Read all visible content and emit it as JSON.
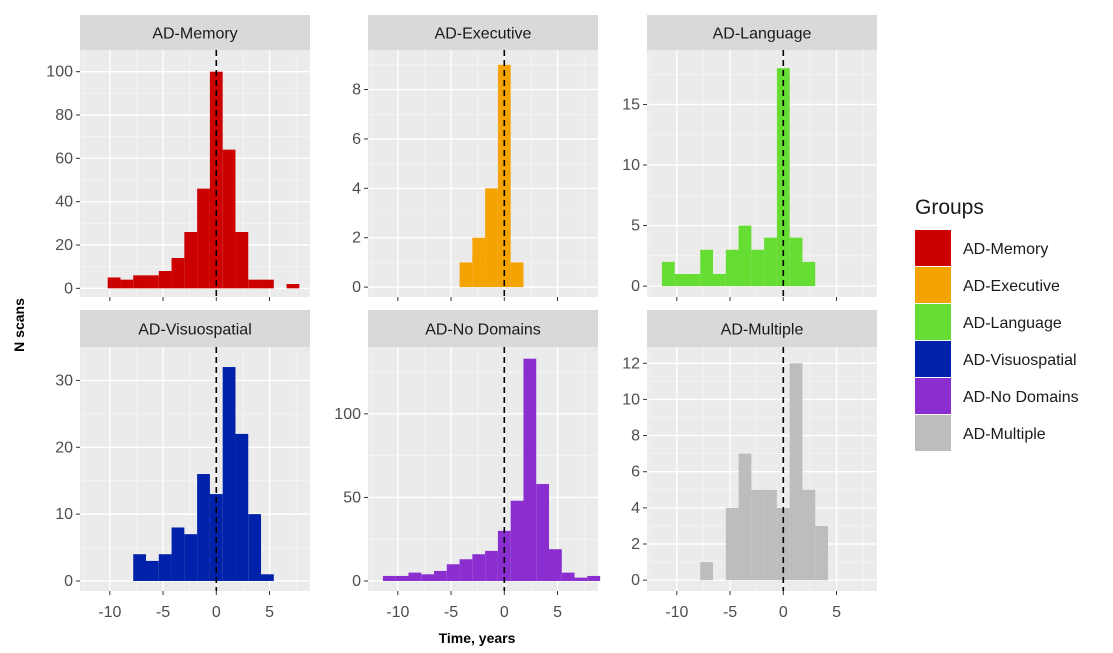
{
  "chart_data": {
    "type": "bar",
    "xlabel": "Time, years",
    "ylabel": "N scans",
    "x_ticks": [
      -10,
      -5,
      0,
      5
    ],
    "xlim": [
      -12.8,
      8.8
    ],
    "bin_width": 1.2,
    "vline_x": 0,
    "legend": {
      "title": "Groups",
      "position": "right"
    },
    "panels": [
      {
        "name": "AD-Memory",
        "color": "#cc0000",
        "ylim": [
          -4,
          110
        ],
        "y_ticks": [
          0,
          20,
          40,
          60,
          80,
          100
        ],
        "bins": [
          {
            "x": -9.6,
            "y": 5
          },
          {
            "x": -8.4,
            "y": 4
          },
          {
            "x": -7.2,
            "y": 6
          },
          {
            "x": -6.0,
            "y": 6
          },
          {
            "x": -4.8,
            "y": 8
          },
          {
            "x": -3.6,
            "y": 14
          },
          {
            "x": -2.4,
            "y": 26
          },
          {
            "x": -1.2,
            "y": 46
          },
          {
            "x": 0.0,
            "y": 100
          },
          {
            "x": 1.2,
            "y": 64
          },
          {
            "x": 2.4,
            "y": 26
          },
          {
            "x": 3.6,
            "y": 4
          },
          {
            "x": 4.8,
            "y": 4
          },
          {
            "x": 6.0,
            "y": 0
          },
          {
            "x": 7.2,
            "y": 2
          }
        ]
      },
      {
        "name": "AD-Executive",
        "color": "#f5a300",
        "ylim": [
          -0.4,
          9.6
        ],
        "y_ticks": [
          0,
          2,
          4,
          6,
          8
        ],
        "bins": [
          {
            "x": -3.6,
            "y": 1
          },
          {
            "x": -2.4,
            "y": 2
          },
          {
            "x": -1.2,
            "y": 4
          },
          {
            "x": 0.0,
            "y": 9
          },
          {
            "x": 1.2,
            "y": 1
          }
        ]
      },
      {
        "name": "AD-Language",
        "color": "#66dd33",
        "ylim": [
          -0.9,
          19.5
        ],
        "y_ticks": [
          0,
          5,
          10,
          15
        ],
        "bins": [
          {
            "x": -10.8,
            "y": 2
          },
          {
            "x": -9.6,
            "y": 1
          },
          {
            "x": -8.4,
            "y": 1
          },
          {
            "x": -7.2,
            "y": 3
          },
          {
            "x": -6.0,
            "y": 1
          },
          {
            "x": -4.8,
            "y": 3
          },
          {
            "x": -3.6,
            "y": 5
          },
          {
            "x": -2.4,
            "y": 3
          },
          {
            "x": -1.2,
            "y": 4
          },
          {
            "x": 0.0,
            "y": 18
          },
          {
            "x": 1.2,
            "y": 4
          },
          {
            "x": 2.4,
            "y": 2
          }
        ]
      },
      {
        "name": "AD-Visuospatial",
        "color": "#0022aa",
        "ylim": [
          -1.5,
          35
        ],
        "y_ticks": [
          0,
          10,
          20,
          30
        ],
        "bins": [
          {
            "x": -7.2,
            "y": 4
          },
          {
            "x": -6.0,
            "y": 3
          },
          {
            "x": -4.8,
            "y": 4
          },
          {
            "x": -3.6,
            "y": 8
          },
          {
            "x": -2.4,
            "y": 7
          },
          {
            "x": -1.2,
            "y": 16
          },
          {
            "x": 0.0,
            "y": 13
          },
          {
            "x": 1.2,
            "y": 32
          },
          {
            "x": 2.4,
            "y": 22
          },
          {
            "x": 3.6,
            "y": 10
          },
          {
            "x": 4.8,
            "y": 1
          }
        ]
      },
      {
        "name": "AD-No Domains",
        "color": "#8a2ecf",
        "ylim": [
          -6,
          140
        ],
        "y_ticks": [
          0,
          50,
          100
        ],
        "bins": [
          {
            "x": -10.8,
            "y": 3
          },
          {
            "x": -9.6,
            "y": 3
          },
          {
            "x": -8.4,
            "y": 5
          },
          {
            "x": -7.2,
            "y": 4
          },
          {
            "x": -6.0,
            "y": 6
          },
          {
            "x": -4.8,
            "y": 10
          },
          {
            "x": -3.6,
            "y": 13
          },
          {
            "x": -2.4,
            "y": 16
          },
          {
            "x": -1.2,
            "y": 18
          },
          {
            "x": 0.0,
            "y": 30
          },
          {
            "x": 1.2,
            "y": 48
          },
          {
            "x": 2.4,
            "y": 133
          },
          {
            "x": 3.6,
            "y": 58
          },
          {
            "x": 4.8,
            "y": 19
          },
          {
            "x": 6.0,
            "y": 5
          },
          {
            "x": 7.2,
            "y": 2
          },
          {
            "x": 8.4,
            "y": 3
          }
        ]
      },
      {
        "name": "AD-Multiple",
        "color": "#bdbdbd",
        "ylim": [
          -0.6,
          12.9
        ],
        "y_ticks": [
          0,
          2,
          4,
          6,
          8,
          10,
          12
        ],
        "bins": [
          {
            "x": -7.2,
            "y": 1
          },
          {
            "x": -4.8,
            "y": 4
          },
          {
            "x": -3.6,
            "y": 7
          },
          {
            "x": -2.4,
            "y": 5
          },
          {
            "x": -1.2,
            "y": 5
          },
          {
            "x": 0.0,
            "y": 4
          },
          {
            "x": 1.2,
            "y": 12
          },
          {
            "x": 2.4,
            "y": 5
          },
          {
            "x": 3.6,
            "y": 3
          }
        ]
      }
    ]
  }
}
